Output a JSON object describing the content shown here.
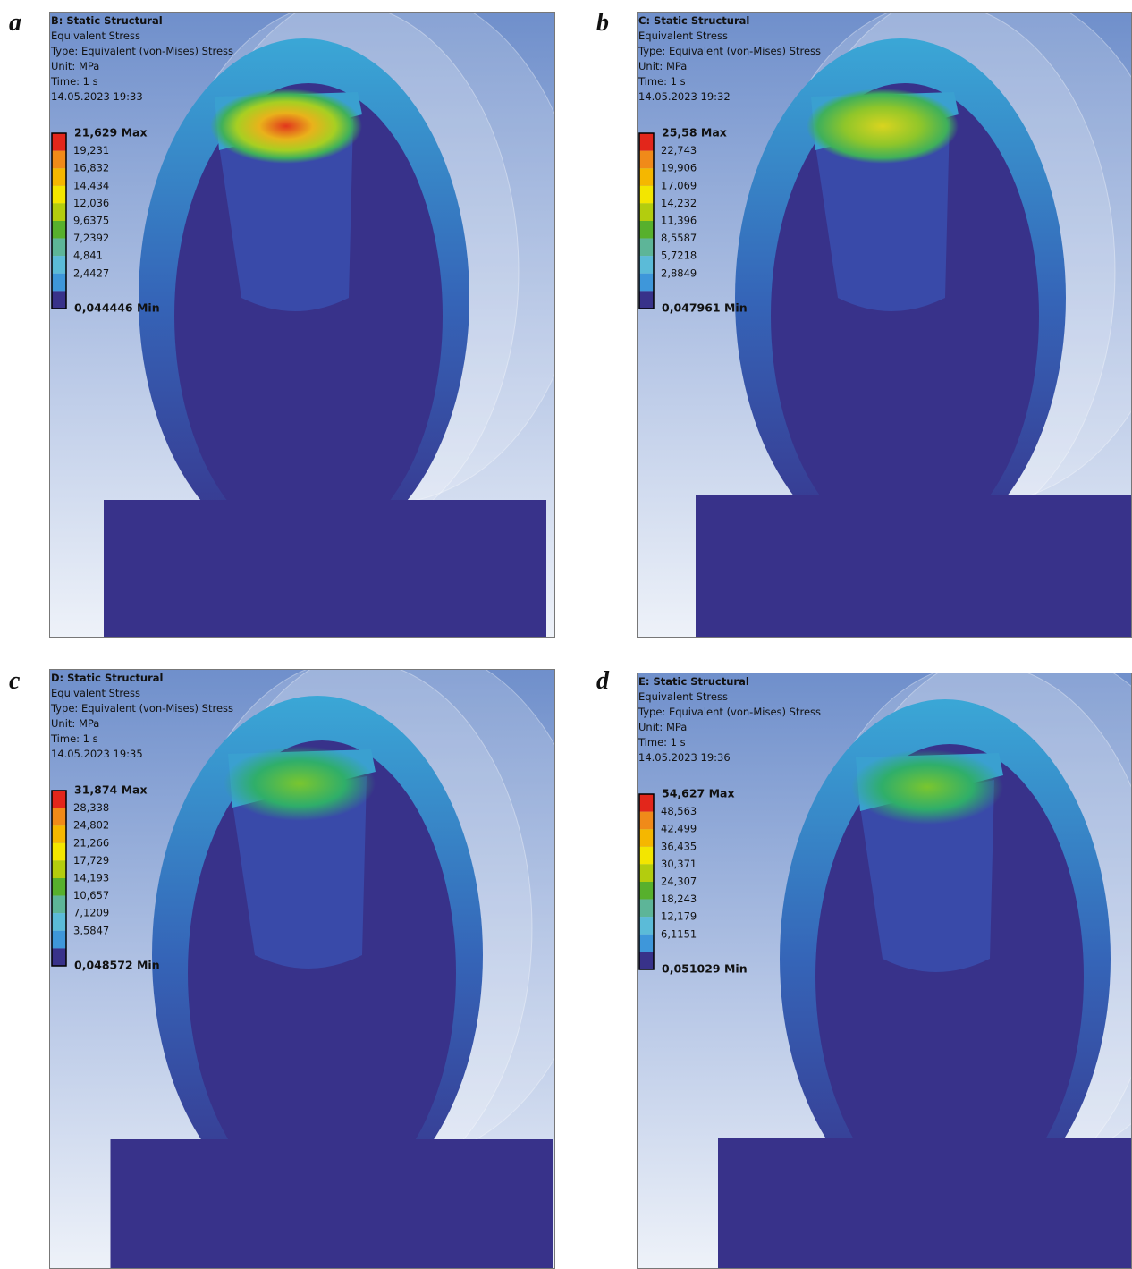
{
  "panels": [
    {
      "label": "a",
      "header": [
        "B: Static Structural",
        "Equivalent Stress",
        "Type: Equivalent (von-Mises) Stress",
        "Unit: MPa",
        "Time: 1 s",
        "14.05.2023 19:33"
      ],
      "legend": [
        "21,629 Max",
        "19,231",
        "16,832",
        "14,434",
        "12,036",
        "9,6375",
        "7,2392",
        "4,841",
        "2,4427",
        "0,044446 Min"
      ]
    },
    {
      "label": "b",
      "header": [
        "C: Static Structural",
        "Equivalent Stress",
        "Type: Equivalent (von-Mises) Stress",
        "Unit: MPa",
        "Time: 1 s",
        "14.05.2023 19:32"
      ],
      "legend": [
        "25,58 Max",
        "22,743",
        "19,906",
        "17,069",
        "14,232",
        "11,396",
        "8,5587",
        "5,7218",
        "2,8849",
        "0,047961 Min"
      ]
    },
    {
      "label": "c",
      "header": [
        "D: Static Structural",
        "Equivalent Stress",
        "Type: Equivalent (von-Mises) Stress",
        "Unit: MPa",
        "Time: 1 s",
        "14.05.2023 19:35"
      ],
      "legend": [
        "31,874 Max",
        "28,338",
        "24,802",
        "21,266",
        "17,729",
        "14,193",
        "10,657",
        "7,1209",
        "3,5847",
        "0,048572 Min"
      ]
    },
    {
      "label": "d",
      "header": [
        "E: Static Structural",
        "Equivalent Stress",
        "Type: Equivalent (von-Mises) Stress",
        "Unit: MPa",
        "Time: 1 s",
        "14.05.2023 19:36"
      ],
      "legend": [
        "54,627 Max",
        "48,563",
        "42,499",
        "36,435",
        "30,371",
        "24,307",
        "18,243",
        "12,179",
        "6,1151",
        "0,051029 Min"
      ]
    }
  ]
}
